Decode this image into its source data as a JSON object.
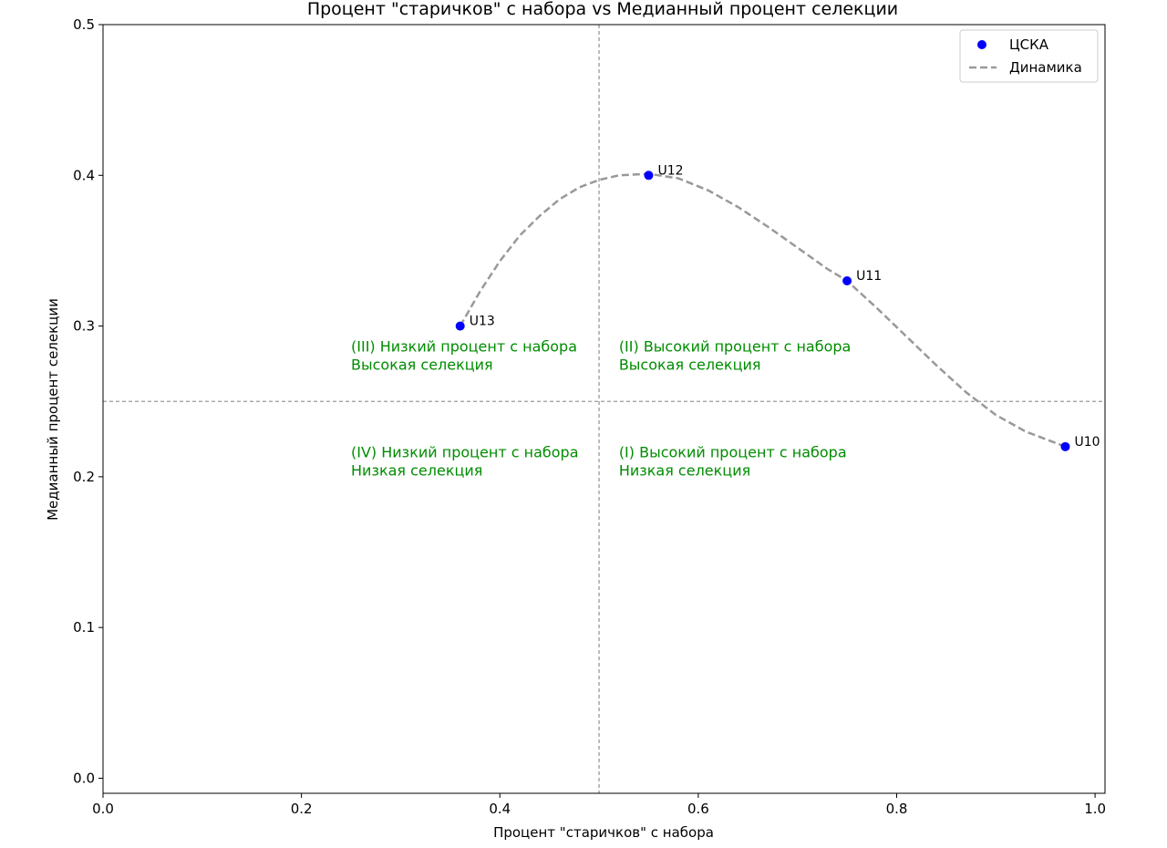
{
  "chart_data": {
    "type": "scatter",
    "title": "Процент \"старичков\" с набора vs Медианный процент селекции",
    "xlabel": "Процент \"старичков\" с набора",
    "ylabel": "Медианный процент селекции",
    "xlim": [
      0.0,
      1.01
    ],
    "ylim": [
      -0.01,
      0.5
    ],
    "xticks": [
      "0.0",
      "0.2",
      "0.4",
      "0.6",
      "0.8",
      "1.0"
    ],
    "yticks": [
      "0.0",
      "0.1",
      "0.2",
      "0.3",
      "0.4",
      "0.5"
    ],
    "grid": false,
    "legend_position": "top-right",
    "series": [
      {
        "name": "ЦСКА",
        "kind": "scatter",
        "color": "#0000ff",
        "points": [
          {
            "x": 0.97,
            "y": 0.22,
            "label": "U10"
          },
          {
            "x": 0.75,
            "y": 0.33,
            "label": "U11"
          },
          {
            "x": 0.55,
            "y": 0.4,
            "label": "U12"
          },
          {
            "x": 0.36,
            "y": 0.3,
            "label": "U13"
          }
        ]
      },
      {
        "name": "Динамика",
        "kind": "line",
        "style": "dashed",
        "color": "#999999",
        "x": [
          0.36,
          0.38,
          0.4,
          0.42,
          0.44,
          0.46,
          0.48,
          0.5,
          0.52,
          0.55,
          0.58,
          0.61,
          0.64,
          0.67,
          0.7,
          0.73,
          0.75,
          0.78,
          0.81,
          0.84,
          0.87,
          0.9,
          0.93,
          0.97
        ],
        "y": [
          0.3,
          0.323,
          0.343,
          0.36,
          0.373,
          0.384,
          0.392,
          0.397,
          0.4,
          0.401,
          0.398,
          0.39,
          0.379,
          0.366,
          0.352,
          0.338,
          0.33,
          0.312,
          0.293,
          0.274,
          0.256,
          0.241,
          0.23,
          0.22
        ]
      }
    ],
    "reference_lines": {
      "vertical_x": 0.5,
      "horizontal_y": 0.25,
      "color": "#999999"
    },
    "annotations": [
      {
        "x": 0.25,
        "y": 0.283,
        "lines": [
          "(III) Низкий процент с набора",
          "Высокая селекция"
        ]
      },
      {
        "x": 0.52,
        "y": 0.283,
        "lines": [
          "(II) Высокий процент с набора",
          "Высокая селекция"
        ]
      },
      {
        "x": 0.25,
        "y": 0.213,
        "lines": [
          "(IV) Низкий процент с набора",
          "Низкая селекция"
        ]
      },
      {
        "x": 0.52,
        "y": 0.213,
        "lines": [
          "(I) Высокий процент с набора",
          "Низкая селекция"
        ]
      }
    ],
    "annotation_color": "#008c00"
  }
}
